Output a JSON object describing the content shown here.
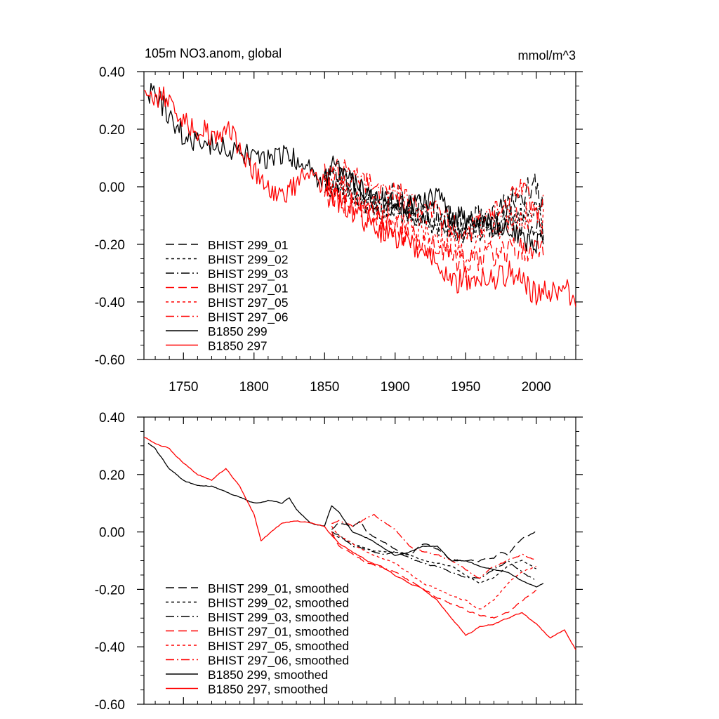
{
  "figure": {
    "title": "105m NO3.anom, global",
    "units": "mmol/m^3"
  },
  "styles": {
    "BHIST 299_01": {
      "color": "#000000",
      "dash": "12,6"
    },
    "BHIST 299_02": {
      "color": "#000000",
      "dash": "4,4"
    },
    "BHIST 299_03": {
      "color": "#000000",
      "dash": "12,4,2,4"
    },
    "BHIST 297_01": {
      "color": "#ff0000",
      "dash": "12,6"
    },
    "BHIST 297_05": {
      "color": "#ff0000",
      "dash": "4,4"
    },
    "BHIST 297_06": {
      "color": "#ff0000",
      "dash": "12,4,2,4"
    },
    "B1850 299": {
      "color": "#000000",
      "dash": ""
    },
    "B1850 297": {
      "color": "#ff0000",
      "dash": ""
    }
  },
  "chart_data": [
    {
      "type": "line",
      "title": "105m NO3.anom, global",
      "units": "mmol/m^3",
      "xlim": [
        1722,
        2028
      ],
      "ylim": [
        -0.6,
        0.4
      ],
      "xticks": [
        1750,
        1800,
        1850,
        1900,
        1950,
        2000
      ],
      "xtick_labels": [
        "1750",
        "1800",
        "1850",
        "1900",
        "1950",
        "2000"
      ],
      "yticks": [
        -0.6,
        -0.4,
        -0.2,
        0.0,
        0.2,
        0.4
      ],
      "ytick_labels": [
        "-0.60",
        "-0.40",
        "-0.20",
        "0.00",
        "0.20",
        "0.40"
      ],
      "legend": "bottom-left",
      "grid": false,
      "series": [
        {
          "name": "BHIST 299_01",
          "style": "BHIST 299_01",
          "x": [
            1850,
            1860,
            1870,
            1880,
            1890,
            1900,
            1910,
            1920,
            1930,
            1940,
            1950,
            1960,
            1970,
            1980,
            1990,
            2000,
            2005
          ],
          "y": [
            0.02,
            0.04,
            0.0,
            -0.02,
            -0.05,
            -0.03,
            -0.07,
            -0.08,
            -0.1,
            -0.12,
            -0.13,
            -0.11,
            -0.09,
            -0.06,
            -0.03,
            0.02,
            -0.1
          ],
          "amp": 0.05
        },
        {
          "name": "BHIST 299_02",
          "style": "BHIST 299_02",
          "x": [
            1850,
            1860,
            1870,
            1880,
            1890,
            1900,
            1910,
            1920,
            1930,
            1940,
            1950,
            1960,
            1970,
            1980,
            1990,
            2000,
            2005
          ],
          "y": [
            0.0,
            -0.01,
            -0.03,
            -0.06,
            -0.07,
            -0.08,
            -0.1,
            -0.12,
            -0.13,
            -0.15,
            -0.15,
            -0.13,
            -0.12,
            -0.11,
            -0.09,
            -0.07,
            -0.14
          ],
          "amp": 0.04
        },
        {
          "name": "BHIST 299_03",
          "style": "BHIST 299_03",
          "x": [
            1850,
            1860,
            1870,
            1880,
            1890,
            1900,
            1910,
            1920,
            1930,
            1940,
            1950,
            1960,
            1970,
            1980,
            1990,
            2000,
            2005
          ],
          "y": [
            0.01,
            0.0,
            -0.04,
            -0.05,
            -0.07,
            -0.06,
            -0.09,
            -0.1,
            -0.12,
            -0.14,
            -0.16,
            -0.15,
            -0.13,
            -0.12,
            -0.14,
            -0.12,
            -0.16
          ],
          "amp": 0.045
        },
        {
          "name": "BHIST 297_01",
          "style": "BHIST 297_01",
          "x": [
            1850,
            1860,
            1870,
            1880,
            1890,
            1900,
            1910,
            1920,
            1930,
            1940,
            1950,
            1960,
            1970,
            1980,
            1990,
            2000,
            2005
          ],
          "y": [
            -0.02,
            -0.05,
            -0.06,
            -0.1,
            -0.12,
            -0.15,
            -0.18,
            -0.2,
            -0.22,
            -0.25,
            -0.27,
            -0.25,
            -0.24,
            -0.22,
            -0.22,
            -0.2,
            -0.22
          ],
          "amp": 0.05
        },
        {
          "name": "BHIST 297_05",
          "style": "BHIST 297_05",
          "x": [
            1850,
            1860,
            1870,
            1880,
            1890,
            1900,
            1910,
            1920,
            1930,
            1940,
            1950,
            1960,
            1970,
            1980,
            1990,
            2000,
            2005
          ],
          "y": [
            0.02,
            0.0,
            -0.02,
            -0.05,
            -0.08,
            -0.1,
            -0.14,
            -0.16,
            -0.18,
            -0.2,
            -0.22,
            -0.2,
            -0.16,
            -0.12,
            -0.1,
            -0.1,
            -0.12
          ],
          "amp": 0.05
        },
        {
          "name": "BHIST 297_06",
          "style": "BHIST 297_06",
          "x": [
            1850,
            1860,
            1870,
            1880,
            1890,
            1900,
            1910,
            1920,
            1930,
            1940,
            1950,
            1960,
            1970,
            1980,
            1990,
            2000,
            2005
          ],
          "y": [
            0.05,
            0.06,
            0.04,
            0.02,
            0.0,
            -0.02,
            -0.06,
            -0.08,
            -0.1,
            -0.14,
            -0.16,
            -0.12,
            -0.08,
            -0.04,
            -0.02,
            -0.08,
            -0.06
          ],
          "amp": 0.05
        },
        {
          "name": "B1850 299",
          "style": "B1850 299",
          "x": [
            1725,
            1730,
            1740,
            1750,
            1760,
            1770,
            1780,
            1790,
            1800,
            1810,
            1820,
            1830,
            1840,
            1850,
            1855,
            1860,
            1870,
            1880,
            1890,
            1900,
            1910,
            1920,
            1930,
            1940,
            1950,
            1960,
            1970,
            1980,
            1990,
            2000,
            2005
          ],
          "y": [
            0.33,
            0.32,
            0.25,
            0.18,
            0.15,
            0.15,
            0.14,
            0.12,
            0.1,
            0.1,
            0.11,
            0.1,
            0.05,
            0.02,
            0.08,
            0.06,
            0.01,
            -0.02,
            -0.04,
            -0.07,
            -0.07,
            -0.05,
            -0.03,
            -0.1,
            -0.11,
            -0.12,
            -0.14,
            -0.15,
            -0.18,
            -0.2,
            -0.18
          ],
          "amp": 0.04
        },
        {
          "name": "B1850 297",
          "style": "B1850 297",
          "x": [
            1722,
            1730,
            1740,
            1750,
            1760,
            1770,
            1780,
            1790,
            1800,
            1810,
            1820,
            1830,
            1840,
            1850,
            1860,
            1870,
            1880,
            1890,
            1900,
            1910,
            1920,
            1930,
            1940,
            1950,
            1960,
            1970,
            1980,
            1990,
            2000,
            2010,
            2020,
            2028
          ],
          "y": [
            0.34,
            0.32,
            0.3,
            0.23,
            0.2,
            0.18,
            0.2,
            0.15,
            0.05,
            0.0,
            -0.03,
            0.02,
            0.03,
            0.01,
            -0.05,
            -0.08,
            -0.12,
            -0.15,
            -0.18,
            -0.18,
            -0.23,
            -0.26,
            -0.33,
            -0.32,
            -0.33,
            -0.32,
            -0.3,
            -0.33,
            -0.38,
            -0.36,
            -0.34,
            -0.42
          ],
          "amp": 0.045
        }
      ],
      "legend_entries": [
        "BHIST 299_01",
        "BHIST 299_02",
        "BHIST 299_03",
        "BHIST 297_01",
        "BHIST 297_05",
        "BHIST 297_06",
        "B1850 299",
        "B1850 297"
      ]
    },
    {
      "type": "line",
      "title": "",
      "xlim": [
        1722,
        2028
      ],
      "ylim": [
        -0.6,
        0.4
      ],
      "xticks": [
        1750,
        1800,
        1850,
        1900,
        1950,
        2000
      ],
      "yticks": [
        -0.6,
        -0.4,
        -0.2,
        0.0,
        0.2,
        0.4
      ],
      "ytick_labels": [
        "-0.60",
        "-0.40",
        "-0.20",
        "0.00",
        "0.20",
        "0.40"
      ],
      "legend": "bottom-left",
      "grid": false,
      "series": [
        {
          "name": "BHIST 299_01, smoothed",
          "style": "BHIST 299_01",
          "x": [
            1855,
            1860,
            1870,
            1875,
            1880,
            1890,
            1900,
            1910,
            1920,
            1930,
            1940,
            1950,
            1960,
            1970,
            1975,
            1980,
            1990,
            2000
          ],
          "y": [
            0.01,
            0.03,
            0.02,
            0.04,
            0.0,
            -0.03,
            -0.06,
            -0.08,
            -0.04,
            -0.06,
            -0.1,
            -0.1,
            -0.1,
            -0.09,
            -0.07,
            -0.08,
            -0.02,
            0.0
          ],
          "amp": 0.008
        },
        {
          "name": "BHIST 299_02, smoothed",
          "style": "BHIST 299_02",
          "x": [
            1855,
            1860,
            1870,
            1880,
            1890,
            1900,
            1910,
            1920,
            1930,
            1940,
            1950,
            1960,
            1970,
            1980,
            1990,
            2000
          ],
          "y": [
            -0.01,
            -0.02,
            -0.04,
            -0.06,
            -0.07,
            -0.07,
            -0.08,
            -0.1,
            -0.11,
            -0.12,
            -0.15,
            -0.18,
            -0.16,
            -0.12,
            -0.1,
            -0.13
          ],
          "amp": 0.006
        },
        {
          "name": "BHIST 299_03, smoothed",
          "style": "BHIST 299_03",
          "x": [
            1855,
            1860,
            1870,
            1880,
            1890,
            1900,
            1910,
            1920,
            1930,
            1940,
            1950,
            1960,
            1970,
            1980,
            1990,
            2000
          ],
          "y": [
            0.0,
            -0.01,
            -0.05,
            -0.06,
            -0.08,
            -0.07,
            -0.09,
            -0.11,
            -0.12,
            -0.14,
            -0.16,
            -0.16,
            -0.13,
            -0.1,
            -0.14,
            -0.17
          ],
          "amp": 0.006
        },
        {
          "name": "BHIST 297_01, smoothed",
          "style": "BHIST 297_01",
          "x": [
            1855,
            1860,
            1870,
            1880,
            1890,
            1900,
            1910,
            1920,
            1930,
            1940,
            1950,
            1960,
            1970,
            1980,
            1990,
            2000
          ],
          "y": [
            0.0,
            -0.05,
            -0.08,
            -0.11,
            -0.12,
            -0.14,
            -0.17,
            -0.2,
            -0.23,
            -0.25,
            -0.27,
            -0.29,
            -0.3,
            -0.28,
            -0.24,
            -0.2
          ],
          "amp": 0.007
        },
        {
          "name": "BHIST 297_05, smoothed",
          "style": "BHIST 297_05",
          "x": [
            1855,
            1860,
            1870,
            1880,
            1890,
            1900,
            1910,
            1920,
            1930,
            1940,
            1950,
            1960,
            1970,
            1980,
            1990,
            2000
          ],
          "y": [
            0.02,
            -0.01,
            -0.04,
            -0.07,
            -0.09,
            -0.11,
            -0.14,
            -0.18,
            -0.2,
            -0.22,
            -0.24,
            -0.27,
            -0.24,
            -0.18,
            -0.14,
            -0.12
          ],
          "amp": 0.007
        },
        {
          "name": "BHIST 297_06, smoothed",
          "style": "BHIST 297_06",
          "x": [
            1855,
            1860,
            1870,
            1880,
            1885,
            1890,
            1900,
            1910,
            1920,
            1930,
            1940,
            1950,
            1960,
            1970,
            1980,
            1990,
            2000
          ],
          "y": [
            0.03,
            0.04,
            0.02,
            0.05,
            0.06,
            0.04,
            0.01,
            -0.05,
            -0.07,
            -0.08,
            -0.1,
            -0.13,
            -0.16,
            -0.12,
            -0.1,
            -0.08,
            -0.1
          ],
          "amp": 0.007
        },
        {
          "name": "B1850 299, smoothed",
          "style": "B1850 299",
          "x": [
            1725,
            1730,
            1740,
            1750,
            1760,
            1770,
            1780,
            1790,
            1800,
            1810,
            1820,
            1825,
            1830,
            1840,
            1850,
            1855,
            1860,
            1870,
            1880,
            1890,
            1900,
            1910,
            1920,
            1930,
            1940,
            1950,
            1960,
            1970,
            1980,
            1990,
            2000,
            2005
          ],
          "y": [
            0.31,
            0.29,
            0.22,
            0.18,
            0.16,
            0.16,
            0.14,
            0.12,
            0.1,
            0.11,
            0.1,
            0.12,
            0.08,
            0.03,
            0.02,
            0.09,
            0.07,
            0.0,
            -0.02,
            -0.05,
            -0.08,
            -0.07,
            -0.05,
            -0.05,
            -0.1,
            -0.1,
            -0.12,
            -0.13,
            -0.14,
            -0.17,
            -0.19,
            -0.18
          ],
          "amp": 0.004
        },
        {
          "name": "B1850 297, smoothed",
          "style": "B1850 297",
          "x": [
            1722,
            1730,
            1740,
            1750,
            1760,
            1770,
            1775,
            1780,
            1790,
            1800,
            1805,
            1810,
            1820,
            1830,
            1840,
            1850,
            1860,
            1870,
            1880,
            1890,
            1900,
            1910,
            1920,
            1930,
            1940,
            1950,
            1960,
            1970,
            1980,
            1990,
            2000,
            2010,
            2020,
            2028
          ],
          "y": [
            0.33,
            0.31,
            0.29,
            0.24,
            0.2,
            0.18,
            0.2,
            0.22,
            0.16,
            0.06,
            -0.03,
            -0.01,
            0.03,
            0.04,
            0.03,
            0.02,
            -0.04,
            -0.07,
            -0.1,
            -0.12,
            -0.15,
            -0.18,
            -0.2,
            -0.24,
            -0.3,
            -0.36,
            -0.33,
            -0.32,
            -0.3,
            -0.28,
            -0.32,
            -0.37,
            -0.34,
            -0.41
          ],
          "amp": 0.005
        }
      ],
      "legend_entries": [
        "BHIST 299_01, smoothed",
        "BHIST 299_02, smoothed",
        "BHIST 299_03, smoothed",
        "BHIST 297_01, smoothed",
        "BHIST 297_05, smoothed",
        "BHIST 297_06, smoothed",
        "B1850 299, smoothed",
        "B1850 297, smoothed"
      ]
    }
  ]
}
